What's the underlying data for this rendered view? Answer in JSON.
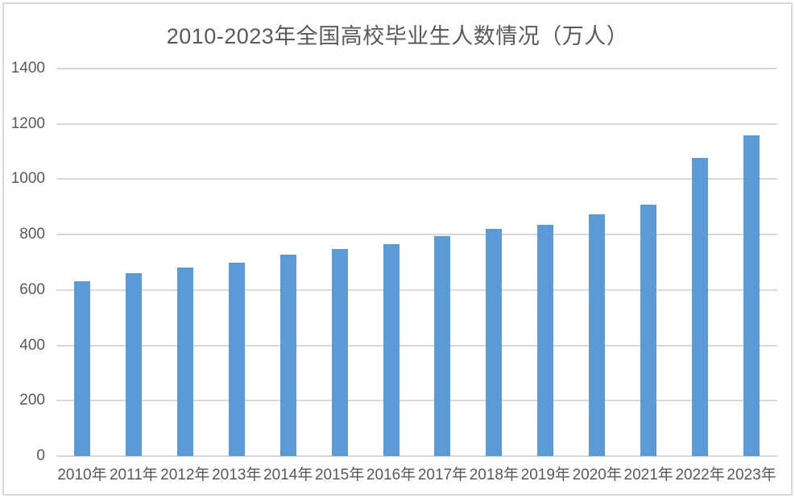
{
  "chart_data": {
    "type": "bar",
    "title": "2010-2023年全国高校毕业生人数情况（万人）",
    "categories": [
      "2010年",
      "2011年",
      "2012年",
      "2013年",
      "2014年",
      "2015年",
      "2016年",
      "2017年",
      "2018年",
      "2019年",
      "2020年",
      "2021年",
      "2022年",
      "2023年"
    ],
    "values": [
      631,
      660,
      680,
      699,
      727,
      749,
      765,
      795,
      820,
      834,
      874,
      909,
      1076,
      1158
    ],
    "series_name": "全国高校毕业生人数",
    "xlabel": "",
    "ylabel": "",
    "ylim": [
      0,
      1400
    ],
    "yticks": [
      0,
      200,
      400,
      600,
      800,
      1000,
      1200,
      1400
    ],
    "grid": true,
    "legend_position": "none",
    "colors": {
      "bar": "#5b9bd5",
      "gridline": "#d9d9d9",
      "axis_line": "#d9d9d9",
      "tick_label": "#595959",
      "title": "#595959",
      "frame_border": "#d9d9d9",
      "background": "#ffffff"
    }
  }
}
